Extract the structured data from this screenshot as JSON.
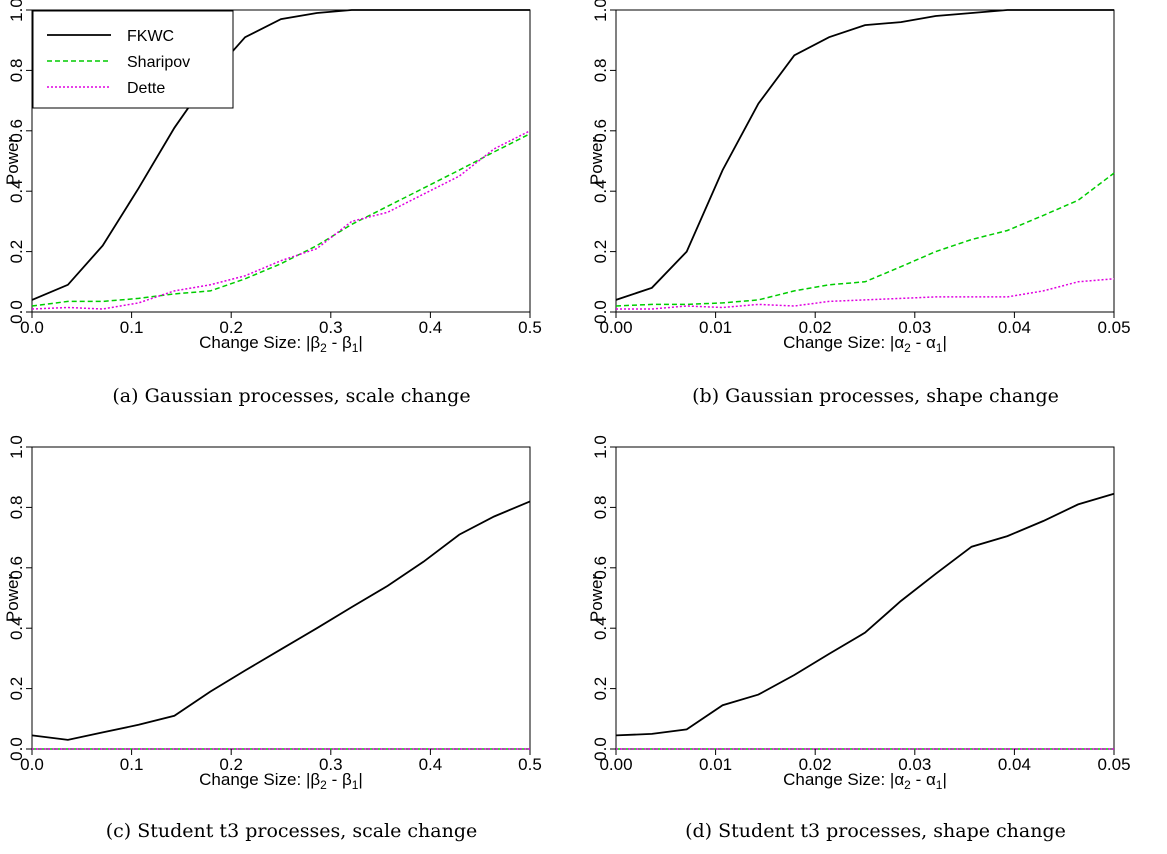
{
  "captions": [
    "(a) Gaussian processes, scale change",
    "(b) Gaussian processes, shape change",
    "(c) Student t3 processes, scale change",
    "(d) Student t3 processes, shape change"
  ],
  "colors": {
    "FKWC": "#000000",
    "Sharipov": "#00cc00",
    "Dette": "#e000e0"
  },
  "chart_data": [
    {
      "type": "line",
      "xlabel": "Change Size: |β2 - β1|",
      "ylabel": "Power",
      "xlim": [
        0,
        0.5
      ],
      "ylim": [
        0,
        1
      ],
      "xticks": [
        "0.0",
        "0.1",
        "0.2",
        "0.3",
        "0.4",
        "0.5"
      ],
      "yticks": [
        "0.0",
        "0.2",
        "0.4",
        "0.6",
        "0.8",
        "1.0"
      ],
      "legend": {
        "position": "top-left",
        "entries": [
          "FKWC",
          "Sharipov",
          "Dette"
        ]
      },
      "x": [
        0.0,
        0.036,
        0.071,
        0.107,
        0.143,
        0.179,
        0.214,
        0.25,
        0.286,
        0.321,
        0.357,
        0.393,
        0.429,
        0.464,
        0.5
      ],
      "series": [
        {
          "name": "FKWC",
          "values": [
            0.04,
            0.09,
            0.22,
            0.41,
            0.61,
            0.78,
            0.91,
            0.97,
            0.99,
            1.0,
            1.0,
            1.0,
            1.0,
            1.0,
            1.0
          ]
        },
        {
          "name": "Sharipov",
          "values": [
            0.02,
            0.035,
            0.035,
            0.045,
            0.06,
            0.07,
            0.11,
            0.16,
            0.22,
            0.29,
            0.35,
            0.41,
            0.47,
            0.53,
            0.59
          ]
        },
        {
          "name": "Dette",
          "values": [
            0.01,
            0.015,
            0.01,
            0.03,
            0.07,
            0.09,
            0.12,
            0.17,
            0.21,
            0.3,
            0.33,
            0.39,
            0.45,
            0.54,
            0.6
          ]
        }
      ]
    },
    {
      "type": "line",
      "xlabel": "Change Size: |α2 - α1|",
      "ylabel": "Power",
      "xlim": [
        0,
        0.05
      ],
      "ylim": [
        0,
        1
      ],
      "xticks": [
        "0.00",
        "0.01",
        "0.02",
        "0.03",
        "0.04",
        "0.05"
      ],
      "yticks": [
        "0.0",
        "0.2",
        "0.4",
        "0.6",
        "0.8",
        "1.0"
      ],
      "x": [
        0.0,
        0.0036,
        0.0071,
        0.0107,
        0.0143,
        0.0179,
        0.0214,
        0.025,
        0.0286,
        0.0321,
        0.0357,
        0.0393,
        0.0429,
        0.0464,
        0.05
      ],
      "series": [
        {
          "name": "FKWC",
          "values": [
            0.04,
            0.08,
            0.2,
            0.47,
            0.69,
            0.85,
            0.91,
            0.95,
            0.96,
            0.98,
            0.99,
            1.0,
            1.0,
            1.0,
            1.0
          ]
        },
        {
          "name": "Sharipov",
          "values": [
            0.02,
            0.025,
            0.025,
            0.03,
            0.04,
            0.07,
            0.09,
            0.1,
            0.15,
            0.2,
            0.24,
            0.27,
            0.32,
            0.37,
            0.46
          ]
        },
        {
          "name": "Dette",
          "values": [
            0.01,
            0.01,
            0.02,
            0.015,
            0.025,
            0.02,
            0.035,
            0.04,
            0.045,
            0.05,
            0.05,
            0.05,
            0.07,
            0.1,
            0.11
          ]
        }
      ]
    },
    {
      "type": "line",
      "xlabel": "Change Size: |β2 - β1|",
      "ylabel": "Power",
      "xlim": [
        0,
        0.5
      ],
      "ylim": [
        0,
        1
      ],
      "xticks": [
        "0.0",
        "0.1",
        "0.2",
        "0.3",
        "0.4",
        "0.5"
      ],
      "yticks": [
        "0.0",
        "0.2",
        "0.4",
        "0.6",
        "0.8",
        "1.0"
      ],
      "x": [
        0.0,
        0.036,
        0.071,
        0.107,
        0.143,
        0.179,
        0.214,
        0.25,
        0.286,
        0.321,
        0.357,
        0.393,
        0.429,
        0.464,
        0.5
      ],
      "series": [
        {
          "name": "FKWC",
          "values": [
            0.045,
            0.03,
            0.055,
            0.08,
            0.11,
            0.19,
            0.26,
            0.33,
            0.4,
            0.47,
            0.54,
            0.62,
            0.71,
            0.77,
            0.82
          ]
        },
        {
          "name": "Sharipov",
          "values": [
            0,
            0,
            0,
            0,
            0,
            0,
            0,
            0,
            0,
            0,
            0,
            0,
            0,
            0,
            0
          ]
        },
        {
          "name": "Dette",
          "values": [
            0,
            0,
            0,
            0,
            0,
            0,
            0,
            0,
            0,
            0,
            0,
            0,
            0,
            0,
            0
          ]
        }
      ]
    },
    {
      "type": "line",
      "xlabel": "Change Size: |α2 - α1|",
      "ylabel": "Power",
      "xlim": [
        0,
        0.05
      ],
      "ylim": [
        0,
        1
      ],
      "xticks": [
        "0.00",
        "0.01",
        "0.02",
        "0.03",
        "0.04",
        "0.05"
      ],
      "yticks": [
        "0.0",
        "0.2",
        "0.4",
        "0.6",
        "0.8",
        "1.0"
      ],
      "x": [
        0.0,
        0.0036,
        0.0071,
        0.0107,
        0.0143,
        0.0179,
        0.0214,
        0.025,
        0.0286,
        0.0321,
        0.0357,
        0.0393,
        0.0429,
        0.0464,
        0.05
      ],
      "series": [
        {
          "name": "FKWC",
          "values": [
            0.045,
            0.05,
            0.065,
            0.145,
            0.18,
            0.245,
            0.315,
            0.385,
            0.49,
            0.58,
            0.67,
            0.705,
            0.755,
            0.81,
            0.845
          ]
        },
        {
          "name": "Sharipov",
          "values": [
            0,
            0,
            0,
            0,
            0,
            0,
            0,
            0,
            0,
            0,
            0,
            0,
            0,
            0,
            0
          ]
        },
        {
          "name": "Dette",
          "values": [
            0,
            0,
            0,
            0,
            0,
            0,
            0,
            0,
            0,
            0,
            0,
            0,
            0,
            0,
            0
          ]
        }
      ]
    }
  ]
}
